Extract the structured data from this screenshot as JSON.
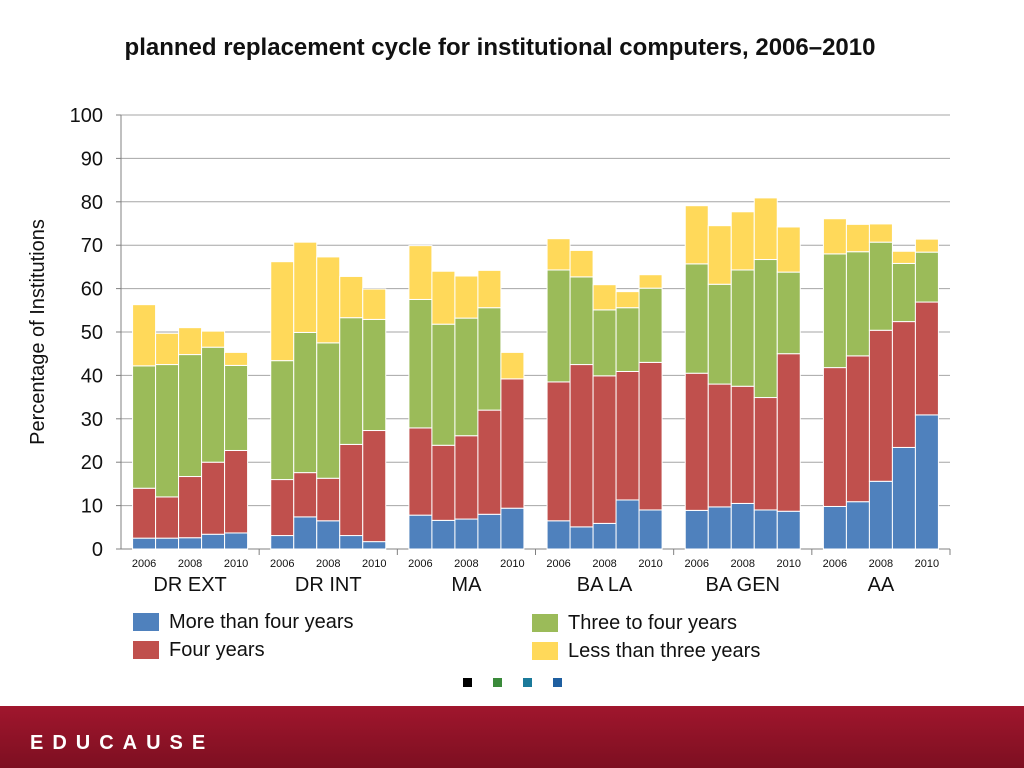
{
  "title": "planned replacement cycle for institutional computers, 2006–2010",
  "colors": {
    "more_than_four": "#4f81bd",
    "four": "#c0504d",
    "three_to_four": "#9bbb59",
    "less_than_three": "#ffd95a",
    "footer": "#8b1226"
  },
  "legend": [
    {
      "label": "More than four years",
      "color": "#4f81bd"
    },
    {
      "label": "Four years",
      "color": "#c0504d"
    },
    {
      "label": "Three to four years",
      "color": "#9bbb59"
    },
    {
      "label": "Less than three years",
      "color": "#ffd95a"
    }
  ],
  "nav_dots": [
    "#000000",
    "#3a8a3a",
    "#1b7a9a",
    "#1f5fa0"
  ],
  "footer": {
    "logo_text": "EDUCAUSE"
  },
  "chart_data": {
    "type": "bar",
    "stacked": true,
    "ylabel": "Percentage of Institutions",
    "ylim": [
      0,
      100
    ],
    "yticks": [
      0,
      10,
      20,
      30,
      40,
      50,
      60,
      70,
      80,
      90,
      100
    ],
    "grid": true,
    "legend_position": "bottom",
    "years": [
      2006,
      2007,
      2008,
      2009,
      2010
    ],
    "year_tick_labels": [
      "2006",
      "2008",
      "2010"
    ],
    "groups": [
      {
        "name": "DR EXT",
        "more_than_four": [
          2.5,
          2.5,
          2.6,
          3.4,
          3.7
        ],
        "four": [
          11.5,
          9.5,
          14.1,
          16.6,
          19.0
        ],
        "three_to_four": [
          28.2,
          30.5,
          28.1,
          26.5,
          19.6
        ],
        "less_than_three": [
          14.1,
          7.2,
          6.2,
          3.7,
          3.0
        ]
      },
      {
        "name": "DR INT",
        "more_than_four": [
          3.1,
          7.4,
          6.5,
          3.1,
          1.7
        ],
        "four": [
          12.9,
          10.2,
          9.8,
          21.0,
          25.6
        ],
        "three_to_four": [
          27.4,
          32.3,
          31.2,
          29.2,
          25.6
        ],
        "less_than_three": [
          22.8,
          20.8,
          19.8,
          9.5,
          7.0
        ]
      },
      {
        "name": "MA",
        "more_than_four": [
          7.8,
          6.6,
          6.9,
          8.0,
          9.4
        ],
        "four": [
          20.1,
          17.3,
          19.2,
          24.0,
          29.8
        ],
        "three_to_four": [
          29.6,
          27.9,
          27.1,
          23.6,
          0
        ],
        "less_than_three": [
          12.4,
          12.2,
          9.7,
          8.6,
          6.1
        ]
      },
      {
        "name": "BA LA",
        "more_than_four": [
          6.5,
          5.1,
          5.9,
          11.3,
          9.0
        ],
        "four": [
          32.0,
          37.4,
          34.0,
          29.6,
          34.0
        ],
        "three_to_four": [
          25.8,
          20.2,
          15.2,
          14.7,
          17.1
        ],
        "less_than_three": [
          7.2,
          6.1,
          5.8,
          3.7,
          3.1
        ]
      },
      {
        "name": "BA GEN",
        "more_than_four": [
          8.9,
          9.7,
          10.5,
          9.0,
          8.7
        ],
        "four": [
          31.6,
          28.3,
          27.0,
          25.9,
          36.3
        ],
        "three_to_four": [
          25.2,
          23.0,
          26.8,
          31.8,
          18.8
        ],
        "less_than_three": [
          13.4,
          13.5,
          13.4,
          14.2,
          10.4
        ]
      },
      {
        "name": "AA",
        "more_than_four": [
          9.8,
          10.9,
          15.6,
          23.4,
          30.9
        ],
        "four": [
          32.0,
          33.6,
          34.8,
          29.0,
          26.0
        ],
        "three_to_four": [
          26.2,
          24.0,
          20.3,
          13.4,
          11.5
        ],
        "less_than_three": [
          8.1,
          6.3,
          4.2,
          2.8,
          3.0
        ]
      }
    ]
  }
}
